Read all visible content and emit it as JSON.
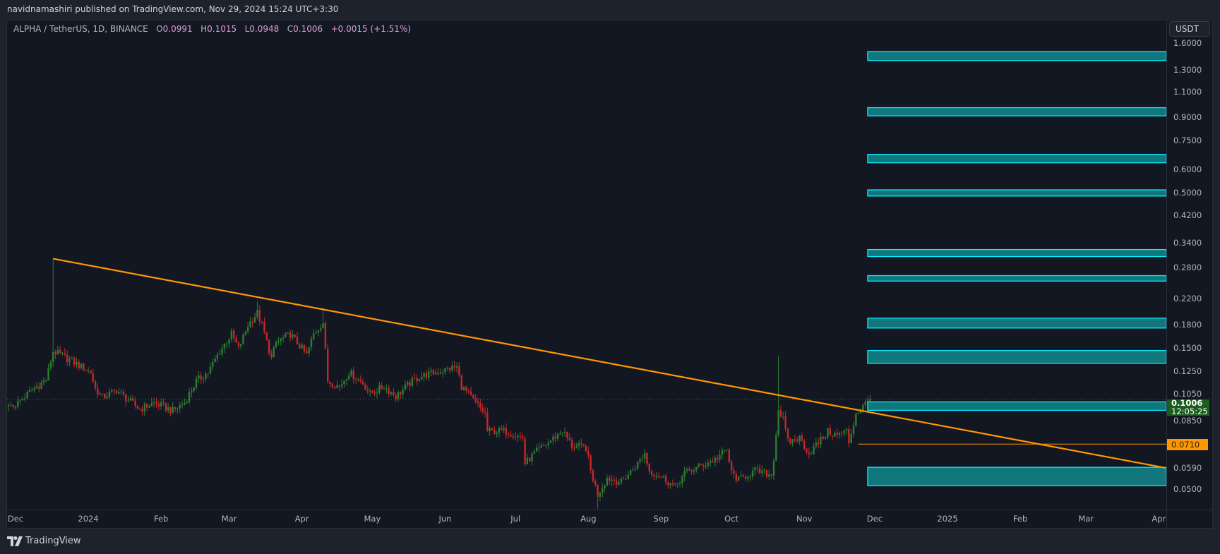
{
  "header": {
    "published": "navidnamashiri published on TradingView.com, Nov 29, 2024 15:24 UTC+3:30"
  },
  "legend": {
    "symbol": "ALPHA / TetherUS, 1D, BINANCE",
    "open_label": "O",
    "open": "0.0991",
    "high_label": "H",
    "high": "0.1015",
    "low_label": "L",
    "low": "0.0948",
    "close_label": "C",
    "close": "0.1006",
    "change": "+0.0015 (+1.51%)"
  },
  "price_axis": {
    "currency": "USDT",
    "current_price": "0.1006",
    "countdown": "12:05:25",
    "level_label": "0.0710"
  },
  "footer": {
    "brand": "TradingView"
  },
  "colors": {
    "up": "#2e7d32",
    "down": "#c62828",
    "trendline": "#ff9800",
    "zone_fill": "#12777c",
    "zone_border": "#00f0ff",
    "background": "#131722"
  },
  "chart_data": {
    "type": "candlestick",
    "scale": "log",
    "ylim": [
      0.0427,
      1.91
    ],
    "xlim": [
      "2023-11-28",
      "2025-04-04"
    ],
    "y_ticks": [
      1.6,
      1.3,
      1.1,
      0.9,
      0.75,
      0.6,
      0.5,
      0.42,
      0.34,
      0.28,
      0.22,
      0.18,
      0.15,
      0.125,
      0.105,
      0.085,
      0.059,
      0.05
    ],
    "x_ticks": [
      {
        "label": "Dec",
        "date": "2023-12-01"
      },
      {
        "label": "2024",
        "date": "2024-01-01"
      },
      {
        "label": "Feb",
        "date": "2024-02-01"
      },
      {
        "label": "Mar",
        "date": "2024-03-01"
      },
      {
        "label": "Apr",
        "date": "2024-04-01"
      },
      {
        "label": "May",
        "date": "2024-05-01"
      },
      {
        "label": "Jun",
        "date": "2024-06-01"
      },
      {
        "label": "Jul",
        "date": "2024-07-01"
      },
      {
        "label": "Aug",
        "date": "2024-08-01"
      },
      {
        "label": "Sep",
        "date": "2024-09-01"
      },
      {
        "label": "Oct",
        "date": "2024-10-01"
      },
      {
        "label": "Nov",
        "date": "2024-11-01"
      },
      {
        "label": "Dec",
        "date": "2024-12-01"
      },
      {
        "label": "2025",
        "date": "2025-01-01"
      },
      {
        "label": "Feb",
        "date": "2025-02-01"
      },
      {
        "label": "Mar",
        "date": "2025-03-01"
      },
      {
        "label": "Apr",
        "date": "2025-04-01"
      }
    ],
    "approx_closes": [
      [
        "2023-11-28",
        0.095
      ],
      [
        "2023-12-01",
        0.0965
      ],
      [
        "2023-12-08",
        0.108
      ],
      [
        "2023-12-14",
        0.117
      ],
      [
        "2023-12-17",
        0.146
      ],
      [
        "2023-12-21",
        0.141
      ],
      [
        "2023-12-28",
        0.131
      ],
      [
        "2024-01-02",
        0.124
      ],
      [
        "2024-01-04",
        0.109
      ],
      [
        "2024-01-07",
        0.102
      ],
      [
        "2024-01-13",
        0.108
      ],
      [
        "2024-01-18",
        0.1
      ],
      [
        "2024-01-23",
        0.093
      ],
      [
        "2024-01-29",
        0.098
      ],
      [
        "2024-02-06",
        0.092
      ],
      [
        "2024-02-11",
        0.098
      ],
      [
        "2024-02-16",
        0.116
      ],
      [
        "2024-02-21",
        0.124
      ],
      [
        "2024-02-26",
        0.146
      ],
      [
        "2024-03-02",
        0.167
      ],
      [
        "2024-03-05",
        0.149
      ],
      [
        "2024-03-09",
        0.179
      ],
      [
        "2024-03-13",
        0.197
      ],
      [
        "2024-03-15",
        0.179
      ],
      [
        "2024-03-19",
        0.138
      ],
      [
        "2024-03-21",
        0.156
      ],
      [
        "2024-03-27",
        0.167
      ],
      [
        "2024-04-01",
        0.149
      ],
      [
        "2024-04-03",
        0.142
      ],
      [
        "2024-04-06",
        0.167
      ],
      [
        "2024-04-10",
        0.183
      ],
      [
        "2024-04-12",
        0.116
      ],
      [
        "2024-04-17",
        0.111
      ],
      [
        "2024-04-21",
        0.124
      ],
      [
        "2024-04-27",
        0.114
      ],
      [
        "2024-04-30",
        0.105
      ],
      [
        "2024-05-06",
        0.111
      ],
      [
        "2024-05-11",
        0.103
      ],
      [
        "2024-05-17",
        0.114
      ],
      [
        "2024-05-21",
        0.12
      ],
      [
        "2024-05-28",
        0.124
      ],
      [
        "2024-06-03",
        0.128
      ],
      [
        "2024-06-06",
        0.129
      ],
      [
        "2024-06-08",
        0.111
      ],
      [
        "2024-06-12",
        0.102
      ],
      [
        "2024-06-18",
        0.09
      ],
      [
        "2024-06-19",
        0.0785
      ],
      [
        "2024-06-27",
        0.0785
      ],
      [
        "2024-07-04",
        0.0745
      ],
      [
        "2024-07-05",
        0.061
      ],
      [
        "2024-07-09",
        0.066
      ],
      [
        "2024-07-16",
        0.073
      ],
      [
        "2024-07-21",
        0.079
      ],
      [
        "2024-07-25",
        0.07
      ],
      [
        "2024-07-31",
        0.069
      ],
      [
        "2024-08-02",
        0.0577
      ],
      [
        "2024-08-05",
        0.048
      ],
      [
        "2024-08-09",
        0.0546
      ],
      [
        "2024-08-15",
        0.0528
      ],
      [
        "2024-08-22",
        0.061
      ],
      [
        "2024-08-25",
        0.066
      ],
      [
        "2024-08-27",
        0.0577
      ],
      [
        "2024-09-02",
        0.0546
      ],
      [
        "2024-09-07",
        0.0508
      ],
      [
        "2024-09-11",
        0.0567
      ],
      [
        "2024-09-18",
        0.06
      ],
      [
        "2024-09-24",
        0.063
      ],
      [
        "2024-09-29",
        0.068
      ],
      [
        "2024-10-01",
        0.0567
      ],
      [
        "2024-10-04",
        0.0537
      ],
      [
        "2024-10-11",
        0.0577
      ],
      [
        "2024-10-18",
        0.0558
      ],
      [
        "2024-10-19",
        0.064
      ],
      [
        "2024-10-21",
        0.093
      ],
      [
        "2024-10-23",
        0.086
      ],
      [
        "2024-10-25",
        0.072
      ],
      [
        "2024-10-30",
        0.0745
      ],
      [
        "2024-11-03",
        0.066
      ],
      [
        "2024-11-05",
        0.069
      ],
      [
        "2024-11-11",
        0.078
      ],
      [
        "2024-11-15",
        0.076
      ],
      [
        "2024-11-19",
        0.0785
      ],
      [
        "2024-11-20",
        0.072
      ],
      [
        "2024-11-23",
        0.09
      ],
      [
        "2024-11-25",
        0.093
      ],
      [
        "2024-11-28",
        0.0991
      ],
      [
        "2024-11-29",
        0.1006
      ]
    ],
    "notable_wicks": [
      {
        "date": "2023-12-17",
        "high": 0.3
      },
      {
        "date": "2024-03-13",
        "high": 0.215
      },
      {
        "date": "2024-04-10",
        "high": 0.205
      },
      {
        "date": "2024-10-21",
        "high": 0.141
      },
      {
        "date": "2024-08-05",
        "low": 0.043
      }
    ],
    "trendline": {
      "from": [
        "2023-12-17",
        0.3
      ],
      "to": [
        "2025-04-04",
        0.059
      ]
    },
    "horizontal_level": {
      "price": 0.071,
      "from": "2024-11-24"
    },
    "zones": {
      "from": "2024-11-28",
      "ranges": [
        [
          1.4,
          1.5
        ],
        [
          0.91,
          0.97
        ],
        [
          0.632,
          0.675
        ],
        [
          0.488,
          0.512
        ],
        [
          0.305,
          0.322
        ],
        [
          0.252,
          0.263
        ],
        [
          0.175,
          0.189
        ],
        [
          0.133,
          0.147
        ],
        [
          0.0923,
          0.0986
        ],
        [
          0.0514,
          0.0593
        ]
      ]
    },
    "last_price": 0.1006
  }
}
